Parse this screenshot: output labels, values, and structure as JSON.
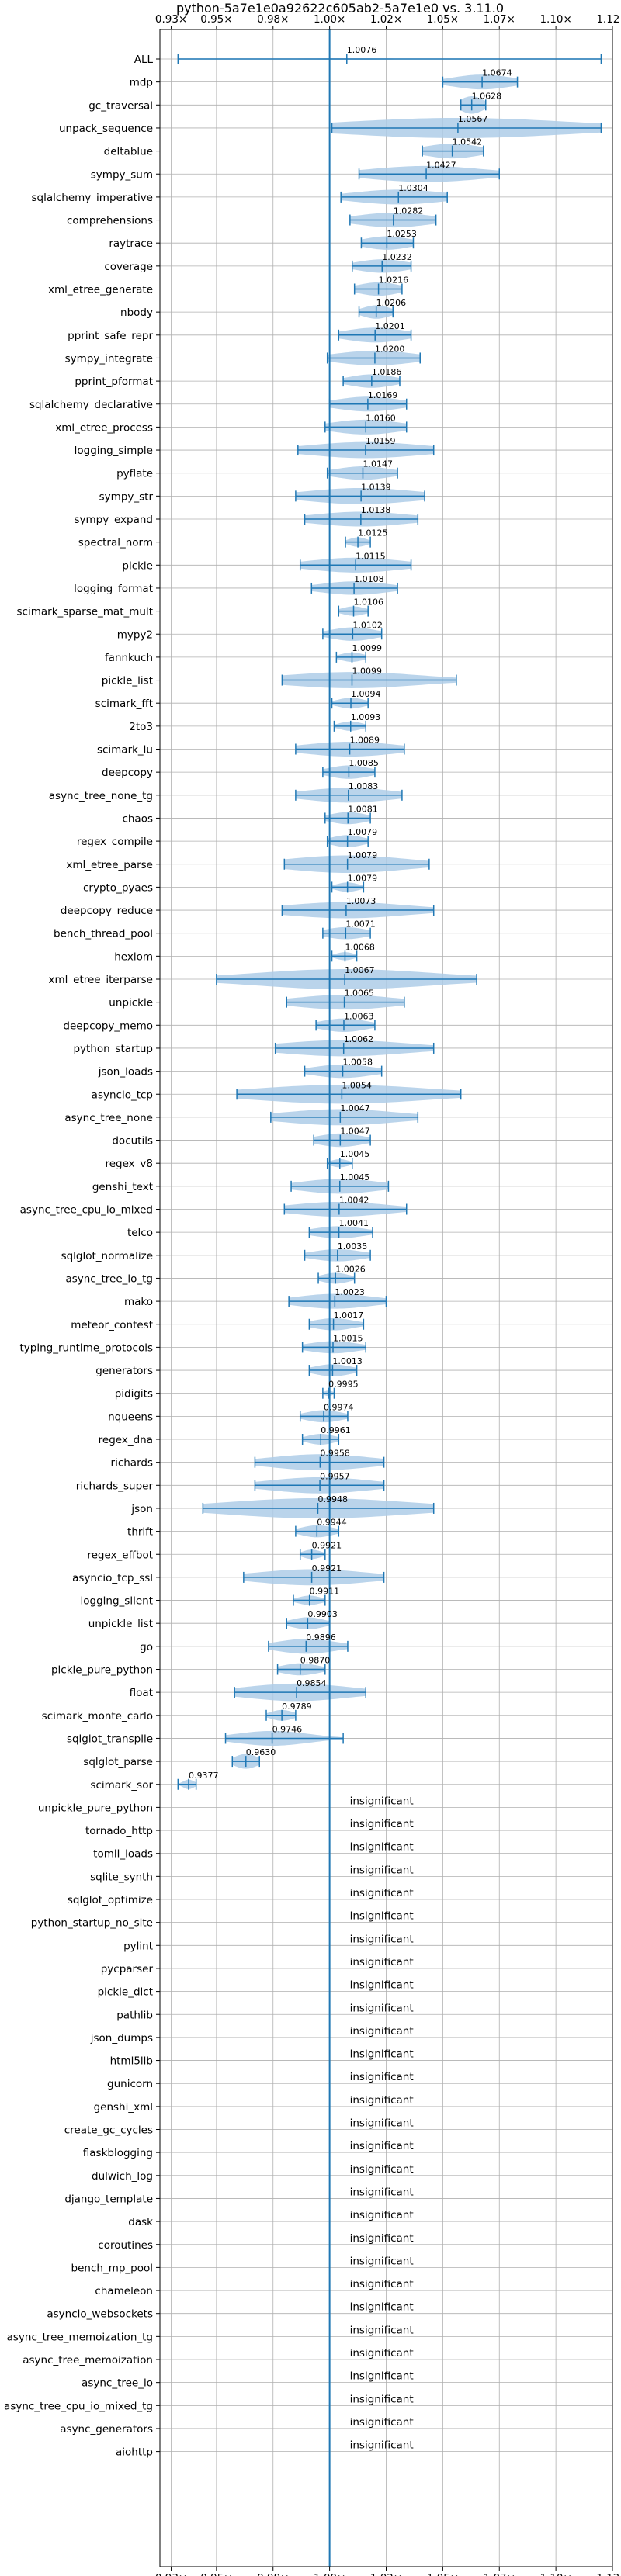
{
  "chart_data": {
    "type": "violin",
    "title": "python-5a7e1e0a92622c605ab2-5a7e1e0 vs. 3.11.0",
    "xlabel": "",
    "ylabel": "",
    "xlim": [
      0.925,
      1.125
    ],
    "xticks": [
      0.93,
      0.95,
      0.975,
      1.0,
      1.025,
      1.05,
      1.075,
      1.1,
      1.125
    ],
    "xtick_labels": [
      "0.93×",
      "0.95×",
      "0.98×",
      "1.00×",
      "1.02×",
      "1.05×",
      "1.07×",
      "1.10×",
      "1.12×"
    ],
    "grid": true,
    "orientation": "horizontal",
    "colors": {
      "violin": "#aecde8",
      "line": "#1f77b4",
      "grid": "#b0b0b0"
    },
    "insignificant_text": "insignificant",
    "benchmarks": [
      {
        "name": "ALL",
        "mean": 1.0076,
        "label": "1.0076",
        "min": 0.933,
        "max": 1.12,
        "width": 0.05,
        "spread": 0.03
      },
      {
        "name": "mdp",
        "mean": 1.0674,
        "label": "1.0674",
        "min": 1.05,
        "max": 1.083,
        "width": 0.55,
        "spread": 0.013
      },
      {
        "name": "gc_traversal",
        "mean": 1.0628,
        "label": "1.0628",
        "min": 1.058,
        "max": 1.069,
        "width": 0.65,
        "spread": 0.005
      },
      {
        "name": "unpack_sequence",
        "mean": 1.0567,
        "label": "1.0567",
        "min": 1.001,
        "max": 1.12,
        "width": 0.75,
        "spread": 0.05
      },
      {
        "name": "deltablue",
        "mean": 1.0542,
        "label": "1.0542",
        "min": 1.041,
        "max": 1.068,
        "width": 0.55,
        "spread": 0.012
      },
      {
        "name": "sympy_sum",
        "mean": 1.0427,
        "label": "1.0427",
        "min": 1.013,
        "max": 1.075,
        "width": 0.6,
        "spread": 0.025
      },
      {
        "name": "sqlalchemy_imperative",
        "mean": 1.0304,
        "label": "1.0304",
        "min": 1.005,
        "max": 1.052,
        "width": 0.55,
        "spread": 0.02
      },
      {
        "name": "comprehensions",
        "mean": 1.0282,
        "label": "1.0282",
        "min": 1.009,
        "max": 1.047,
        "width": 0.55,
        "spread": 0.016
      },
      {
        "name": "raytrace",
        "mean": 1.0253,
        "label": "1.0253",
        "min": 1.014,
        "max": 1.037,
        "width": 0.5,
        "spread": 0.01
      },
      {
        "name": "coverage",
        "mean": 1.0232,
        "label": "1.0232",
        "min": 1.01,
        "max": 1.036,
        "width": 0.5,
        "spread": 0.011
      },
      {
        "name": "xml_etree_generate",
        "mean": 1.0216,
        "label": "1.0216",
        "min": 1.011,
        "max": 1.032,
        "width": 0.5,
        "spread": 0.009
      },
      {
        "name": "nbody",
        "mean": 1.0206,
        "label": "1.0206",
        "min": 1.013,
        "max": 1.028,
        "width": 0.5,
        "spread": 0.006
      },
      {
        "name": "pprint_safe_repr",
        "mean": 1.0201,
        "label": "1.0201",
        "min": 1.004,
        "max": 1.036,
        "width": 0.55,
        "spread": 0.013
      },
      {
        "name": "sympy_integrate",
        "mean": 1.02,
        "label": "1.0200",
        "min": 0.999,
        "max": 1.04,
        "width": 0.55,
        "spread": 0.017
      },
      {
        "name": "pprint_pformat",
        "mean": 1.0186,
        "label": "1.0186",
        "min": 1.006,
        "max": 1.031,
        "width": 0.5,
        "spread": 0.01
      },
      {
        "name": "sqlalchemy_declarative",
        "mean": 1.0169,
        "label": "1.0169",
        "min": 1.0,
        "max": 1.034,
        "width": 0.55,
        "spread": 0.014
      },
      {
        "name": "xml_etree_process",
        "mean": 1.016,
        "label": "1.0160",
        "min": 0.998,
        "max": 1.034,
        "width": 0.55,
        "spread": 0.015
      },
      {
        "name": "logging_simple",
        "mean": 1.0159,
        "label": "1.0159",
        "min": 0.986,
        "max": 1.046,
        "width": 0.6,
        "spread": 0.025
      },
      {
        "name": "pyflate",
        "mean": 1.0147,
        "label": "1.0147",
        "min": 0.999,
        "max": 1.03,
        "width": 0.5,
        "spread": 0.012
      },
      {
        "name": "sympy_str",
        "mean": 1.0139,
        "label": "1.0139",
        "min": 0.985,
        "max": 1.042,
        "width": 0.6,
        "spread": 0.024
      },
      {
        "name": "sympy_expand",
        "mean": 1.0138,
        "label": "1.0138",
        "min": 0.989,
        "max": 1.039,
        "width": 0.55,
        "spread": 0.021
      },
      {
        "name": "spectral_norm",
        "mean": 1.0125,
        "label": "1.0125",
        "min": 1.007,
        "max": 1.018,
        "width": 0.35,
        "spread": 0.004
      },
      {
        "name": "pickle",
        "mean": 1.0115,
        "label": "1.0115",
        "min": 0.987,
        "max": 1.036,
        "width": 0.55,
        "spread": 0.02
      },
      {
        "name": "logging_format",
        "mean": 1.0108,
        "label": "1.0108",
        "min": 0.992,
        "max": 1.03,
        "width": 0.5,
        "spread": 0.015
      },
      {
        "name": "scimark_sparse_mat_mult",
        "mean": 1.0106,
        "label": "1.0106",
        "min": 1.004,
        "max": 1.017,
        "width": 0.35,
        "spread": 0.005
      },
      {
        "name": "mypy2",
        "mean": 1.0102,
        "label": "1.0102",
        "min": 0.997,
        "max": 1.023,
        "width": 0.5,
        "spread": 0.01
      },
      {
        "name": "fannkuch",
        "mean": 1.0099,
        "label": "1.0099",
        "min": 1.003,
        "max": 1.016,
        "width": 0.35,
        "spread": 0.005
      },
      {
        "name": "pickle_list",
        "mean": 1.0099,
        "label": "1.0099",
        "min": 0.979,
        "max": 1.056,
        "width": 0.6,
        "spread": 0.03
      },
      {
        "name": "scimark_fft",
        "mean": 1.0094,
        "label": "1.0094",
        "min": 1.001,
        "max": 1.017,
        "width": 0.4,
        "spread": 0.006
      },
      {
        "name": "2to3",
        "mean": 1.0093,
        "label": "1.0093",
        "min": 1.002,
        "max": 1.016,
        "width": 0.35,
        "spread": 0.005
      },
      {
        "name": "scimark_lu",
        "mean": 1.0089,
        "label": "1.0089",
        "min": 0.985,
        "max": 1.033,
        "width": 0.55,
        "spread": 0.02
      },
      {
        "name": "deepcopy",
        "mean": 1.0085,
        "label": "1.0085",
        "min": 0.997,
        "max": 1.02,
        "width": 0.5,
        "spread": 0.009
      },
      {
        "name": "async_tree_none_tg",
        "mean": 1.0083,
        "label": "1.0083",
        "min": 0.985,
        "max": 1.032,
        "width": 0.55,
        "spread": 0.019
      },
      {
        "name": "chaos",
        "mean": 1.0081,
        "label": "1.0081",
        "min": 0.998,
        "max": 1.018,
        "width": 0.45,
        "spread": 0.008
      },
      {
        "name": "regex_compile",
        "mean": 1.0079,
        "label": "1.0079",
        "min": 0.999,
        "max": 1.017,
        "width": 0.45,
        "spread": 0.007
      },
      {
        "name": "xml_etree_parse",
        "mean": 1.0079,
        "label": "1.0079",
        "min": 0.98,
        "max": 1.044,
        "width": 0.65,
        "spread": 0.026
      },
      {
        "name": "crypto_pyaes",
        "mean": 1.0079,
        "label": "1.0079",
        "min": 1.001,
        "max": 1.015,
        "width": 0.35,
        "spread": 0.005
      },
      {
        "name": "deepcopy_reduce",
        "mean": 1.0073,
        "label": "1.0073",
        "min": 0.979,
        "max": 1.046,
        "width": 0.6,
        "spread": 0.027
      },
      {
        "name": "bench_thread_pool",
        "mean": 1.0071,
        "label": "1.0071",
        "min": 0.997,
        "max": 1.018,
        "width": 0.45,
        "spread": 0.009
      },
      {
        "name": "hexiom",
        "mean": 1.0068,
        "label": "1.0068",
        "min": 1.001,
        "max": 1.012,
        "width": 0.3,
        "spread": 0.004
      },
      {
        "name": "xml_etree_iterparse",
        "mean": 1.0067,
        "label": "1.0067",
        "min": 0.95,
        "max": 1.065,
        "width": 0.75,
        "spread": 0.04
      },
      {
        "name": "unpickle",
        "mean": 1.0065,
        "label": "1.0065",
        "min": 0.981,
        "max": 1.033,
        "width": 0.55,
        "spread": 0.021
      },
      {
        "name": "deepcopy_memo",
        "mean": 1.0063,
        "label": "1.0063",
        "min": 0.994,
        "max": 1.02,
        "width": 0.5,
        "spread": 0.01
      },
      {
        "name": "python_startup",
        "mean": 1.0062,
        "label": "1.0062",
        "min": 0.976,
        "max": 1.046,
        "width": 0.6,
        "spread": 0.028
      },
      {
        "name": "json_loads",
        "mean": 1.0058,
        "label": "1.0058",
        "min": 0.989,
        "max": 1.023,
        "width": 0.5,
        "spread": 0.013
      },
      {
        "name": "asyncio_tcp",
        "mean": 1.0054,
        "label": "1.0054",
        "min": 0.959,
        "max": 1.058,
        "width": 0.7,
        "spread": 0.038
      },
      {
        "name": "async_tree_none",
        "mean": 1.0047,
        "label": "1.0047",
        "min": 0.974,
        "max": 1.039,
        "width": 0.6,
        "spread": 0.025
      },
      {
        "name": "docutils",
        "mean": 1.0047,
        "label": "1.0047",
        "min": 0.993,
        "max": 1.018,
        "width": 0.5,
        "spread": 0.01
      },
      {
        "name": "regex_v8",
        "mean": 1.0045,
        "label": "1.0045",
        "min": 0.999,
        "max": 1.01,
        "width": 0.3,
        "spread": 0.004
      },
      {
        "name": "genshi_text",
        "mean": 1.0045,
        "label": "1.0045",
        "min": 0.983,
        "max": 1.026,
        "width": 0.55,
        "spread": 0.017
      },
      {
        "name": "async_tree_cpu_io_mixed",
        "mean": 1.0042,
        "label": "1.0042",
        "min": 0.98,
        "max": 1.034,
        "width": 0.55,
        "spread": 0.021
      },
      {
        "name": "telco",
        "mean": 1.0041,
        "label": "1.0041",
        "min": 0.991,
        "max": 1.019,
        "width": 0.45,
        "spread": 0.011
      },
      {
        "name": "sqlglot_normalize",
        "mean": 1.0035,
        "label": "1.0035",
        "min": 0.989,
        "max": 1.018,
        "width": 0.45,
        "spread": 0.011
      },
      {
        "name": "async_tree_io_tg",
        "mean": 1.0026,
        "label": "1.0026",
        "min": 0.995,
        "max": 1.011,
        "width": 0.4,
        "spread": 0.006
      },
      {
        "name": "mako",
        "mean": 1.0023,
        "label": "1.0023",
        "min": 0.982,
        "max": 1.025,
        "width": 0.55,
        "spread": 0.017
      },
      {
        "name": "meteor_contest",
        "mean": 1.0017,
        "label": "1.0017",
        "min": 0.991,
        "max": 1.015,
        "width": 0.45,
        "spread": 0.009
      },
      {
        "name": "typing_runtime_protocols",
        "mean": 1.0015,
        "label": "1.0015",
        "min": 0.988,
        "max": 1.016,
        "width": 0.45,
        "spread": 0.011
      },
      {
        "name": "generators",
        "mean": 1.0013,
        "label": "1.0013",
        "min": 0.991,
        "max": 1.012,
        "width": 0.45,
        "spread": 0.008
      },
      {
        "name": "pidigits",
        "mean": 0.9995,
        "label": "0.9995",
        "min": 0.997,
        "max": 1.002,
        "width": 0.2,
        "spread": 0.002
      },
      {
        "name": "nqueens",
        "mean": 0.9974,
        "label": "0.9974",
        "min": 0.987,
        "max": 1.008,
        "width": 0.45,
        "spread": 0.008
      },
      {
        "name": "regex_dna",
        "mean": 0.9961,
        "label": "0.9961",
        "min": 0.988,
        "max": 1.004,
        "width": 0.4,
        "spread": 0.006
      },
      {
        "name": "richards",
        "mean": 0.9958,
        "label": "0.9958",
        "min": 0.967,
        "max": 1.024,
        "width": 0.6,
        "spread": 0.022
      },
      {
        "name": "richards_super",
        "mean": 0.9957,
        "label": "0.9957",
        "min": 0.967,
        "max": 1.024,
        "width": 0.6,
        "spread": 0.022
      },
      {
        "name": "json",
        "mean": 0.9948,
        "label": "0.9948",
        "min": 0.944,
        "max": 1.046,
        "width": 0.75,
        "spread": 0.04
      },
      {
        "name": "thrift",
        "mean": 0.9944,
        "label": "0.9944",
        "min": 0.985,
        "max": 1.004,
        "width": 0.45,
        "spread": 0.007
      },
      {
        "name": "regex_effbot",
        "mean": 0.9921,
        "label": "0.9921",
        "min": 0.987,
        "max": 0.998,
        "width": 0.35,
        "spread": 0.004
      },
      {
        "name": "asyncio_tcp_ssl",
        "mean": 0.9921,
        "label": "0.9921",
        "min": 0.962,
        "max": 1.024,
        "width": 0.6,
        "spread": 0.024
      },
      {
        "name": "logging_silent",
        "mean": 0.9911,
        "label": "0.9911",
        "min": 0.984,
        "max": 0.998,
        "width": 0.35,
        "spread": 0.005
      },
      {
        "name": "unpickle_list",
        "mean": 0.9903,
        "label": "0.9903",
        "min": 0.981,
        "max": 1.0,
        "width": 0.45,
        "spread": 0.007
      },
      {
        "name": "go",
        "mean": 0.9896,
        "label": "0.9896",
        "min": 0.973,
        "max": 1.008,
        "width": 0.55,
        "spread": 0.013
      },
      {
        "name": "pickle_pure_python",
        "mean": 0.987,
        "label": "0.9870",
        "min": 0.977,
        "max": 0.998,
        "width": 0.45,
        "spread": 0.008
      },
      {
        "name": "float",
        "mean": 0.9854,
        "label": "0.9854",
        "min": 0.958,
        "max": 1.016,
        "width": 0.65,
        "spread": 0.023
      },
      {
        "name": "scimark_monte_carlo",
        "mean": 0.9789,
        "label": "0.9789",
        "min": 0.972,
        "max": 0.985,
        "width": 0.4,
        "spread": 0.005
      },
      {
        "name": "sqlglot_transpile",
        "mean": 0.9746,
        "label": "0.9746",
        "min": 0.954,
        "max": 1.006,
        "width": 0.55,
        "spread": 0.016
      },
      {
        "name": "sqlglot_parse",
        "mean": 0.963,
        "label": "0.9630",
        "min": 0.957,
        "max": 0.969,
        "width": 0.55,
        "spread": 0.005
      },
      {
        "name": "scimark_sor",
        "mean": 0.9377,
        "label": "0.9377",
        "min": 0.933,
        "max": 0.941,
        "width": 0.35,
        "spread": 0.0025
      }
    ],
    "insignificant": [
      "unpickle_pure_python",
      "tornado_http",
      "tomli_loads",
      "sqlite_synth",
      "sqlglot_optimize",
      "python_startup_no_site",
      "pylint",
      "pycparser",
      "pickle_dict",
      "pathlib",
      "json_dumps",
      "html5lib",
      "gunicorn",
      "genshi_xml",
      "create_gc_cycles",
      "flaskblogging",
      "dulwich_log",
      "django_template",
      "dask",
      "coroutines",
      "bench_mp_pool",
      "chameleon",
      "asyncio_websockets",
      "async_tree_memoization_tg",
      "async_tree_memoization",
      "async_tree_io",
      "async_tree_cpu_io_mixed_tg",
      "async_generators",
      "aiohttp"
    ]
  }
}
